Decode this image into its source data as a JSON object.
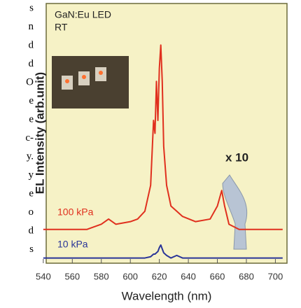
{
  "margin_text": [
    "s",
    "n",
    "d",
    "d",
    "O",
    "e",
    "e",
    "c-",
    "y.",
    "y",
    "e",
    "o",
    "d",
    "s"
  ],
  "chart_data": {
    "type": "line",
    "xlabel": "Wavelength (nm)",
    "ylabel": "EL Intensity (arb.unit)",
    "annotations": [
      "GaN:Eu LED",
      "RT",
      "x 10"
    ],
    "x": [
      540,
      570,
      580,
      585,
      590,
      600,
      605,
      610,
      614,
      616,
      617,
      618,
      619,
      620,
      621,
      622,
      623,
      625,
      628,
      632,
      636,
      645,
      655,
      660,
      663,
      665,
      668,
      675,
      705
    ],
    "series": [
      {
        "name": "100 kPa",
        "color": "#e0301e",
        "values": [
          0.13,
          0.13,
          0.15,
          0.17,
          0.15,
          0.16,
          0.17,
          0.2,
          0.3,
          0.55,
          0.5,
          0.7,
          0.55,
          0.75,
          0.84,
          0.7,
          0.45,
          0.3,
          0.22,
          0.2,
          0.18,
          0.16,
          0.17,
          0.22,
          0.28,
          0.22,
          0.15,
          0.13,
          0.13
        ]
      },
      {
        "name": "10 kPa",
        "color": "#2a3598",
        "values": [
          0.02,
          0.02,
          0.02,
          0.02,
          0.02,
          0.02,
          0.02,
          0.02,
          0.025,
          0.035,
          0.035,
          0.04,
          0.045,
          0.06,
          0.07,
          0.055,
          0.04,
          0.03,
          0.02,
          0.03,
          0.02,
          0.02,
          0.02,
          0.02,
          0.02,
          0.02,
          0.02,
          0.02,
          0.02
        ]
      }
    ],
    "xlim": [
      542,
      708
    ],
    "ylim": [
      0,
      1
    ],
    "xticks": [
      540,
      560,
      580,
      600,
      620,
      640,
      660,
      680,
      700
    ],
    "grid": false
  }
}
